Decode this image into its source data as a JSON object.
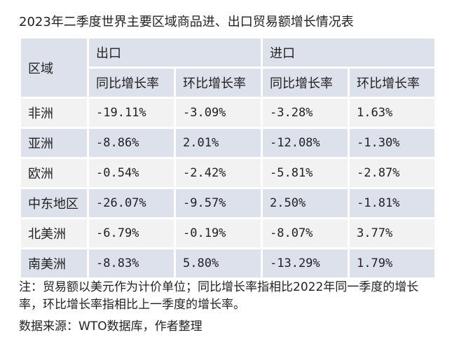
{
  "title": "2023年二季度世界主要区域商品进、出口贸易额增长情况表",
  "table": {
    "region_header": "区域",
    "groups": [
      "出口",
      "进口"
    ],
    "subheaders": [
      "同比增长率",
      "环比增长率",
      "同比增长率",
      "环比增长率"
    ],
    "rows": [
      {
        "region": "非洲",
        "values": [
          "-19.11%",
          "-3.09%",
          "-3.28%",
          "1.63%"
        ]
      },
      {
        "region": "亚洲",
        "values": [
          "-8.86%",
          "2.01%",
          "-12.08%",
          "-1.30%"
        ]
      },
      {
        "region": "欧洲",
        "values": [
          "-0.54%",
          "-2.42%",
          "-5.81%",
          "-2.87%"
        ]
      },
      {
        "region": "中东地区",
        "values": [
          "-26.07%",
          "-9.57%",
          "2.50%",
          "-1.81%"
        ]
      },
      {
        "region": "北美洲",
        "values": [
          "-6.79%",
          "-0.19%",
          "-8.07%",
          "3.77%"
        ]
      },
      {
        "region": "南美洲",
        "values": [
          "-8.83%",
          "5.80%",
          "-13.29%",
          "1.79%"
        ]
      }
    ]
  },
  "note": "注：贸易额以美元作为计价单位；同比增长率指相比2022年同一季度的增长率，环比增长率指相比上一季度的增长率。",
  "source": "数据来源：WTO数据库，作者整理"
}
